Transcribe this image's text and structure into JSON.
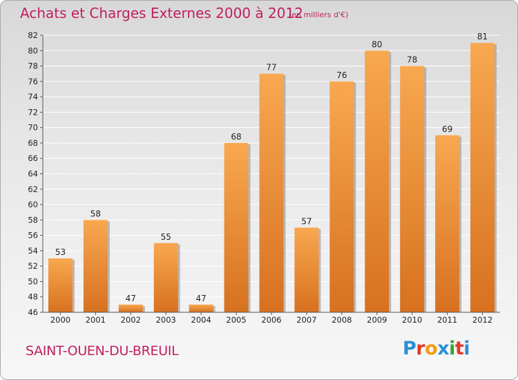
{
  "header": {
    "title": "Achats et Charges Externes 2000 à 2012",
    "subtitle": "(en milliers d'€)"
  },
  "footer": {
    "commune": "SAINT-OUEN-DU-BREUIL",
    "logo_text": "Proxiti",
    "logo_colors": [
      "#2b8fd6",
      "#e03a2b",
      "#f39c12",
      "#2b8fd6",
      "#3aa12f",
      "#e03a2b",
      "#2b8fd6"
    ]
  },
  "colors": {
    "bar_light": "#f8a850",
    "bar_dark": "#d7711f",
    "bar_shadow": "#8a8a8a",
    "grid": "#ffffff",
    "axis": "#555555",
    "accent": "#c01f5e"
  },
  "chart_data": {
    "type": "bar",
    "title": "Achats et Charges Externes 2000 à 2012",
    "subtitle": "(en milliers d'€)",
    "categories": [
      "2000",
      "2001",
      "2002",
      "2003",
      "2004",
      "2005",
      "2006",
      "2007",
      "2008",
      "2009",
      "2010",
      "2011",
      "2012"
    ],
    "values": [
      53,
      58,
      47,
      55,
      47,
      68,
      77,
      57,
      76,
      80,
      78,
      69,
      81
    ],
    "ylim": [
      46,
      82
    ],
    "yticks": [
      46,
      48,
      50,
      52,
      54,
      56,
      58,
      60,
      62,
      64,
      66,
      68,
      70,
      72,
      74,
      76,
      78,
      80,
      82
    ],
    "xlabel": "",
    "ylabel": "",
    "grid": true,
    "data_labels": true
  }
}
